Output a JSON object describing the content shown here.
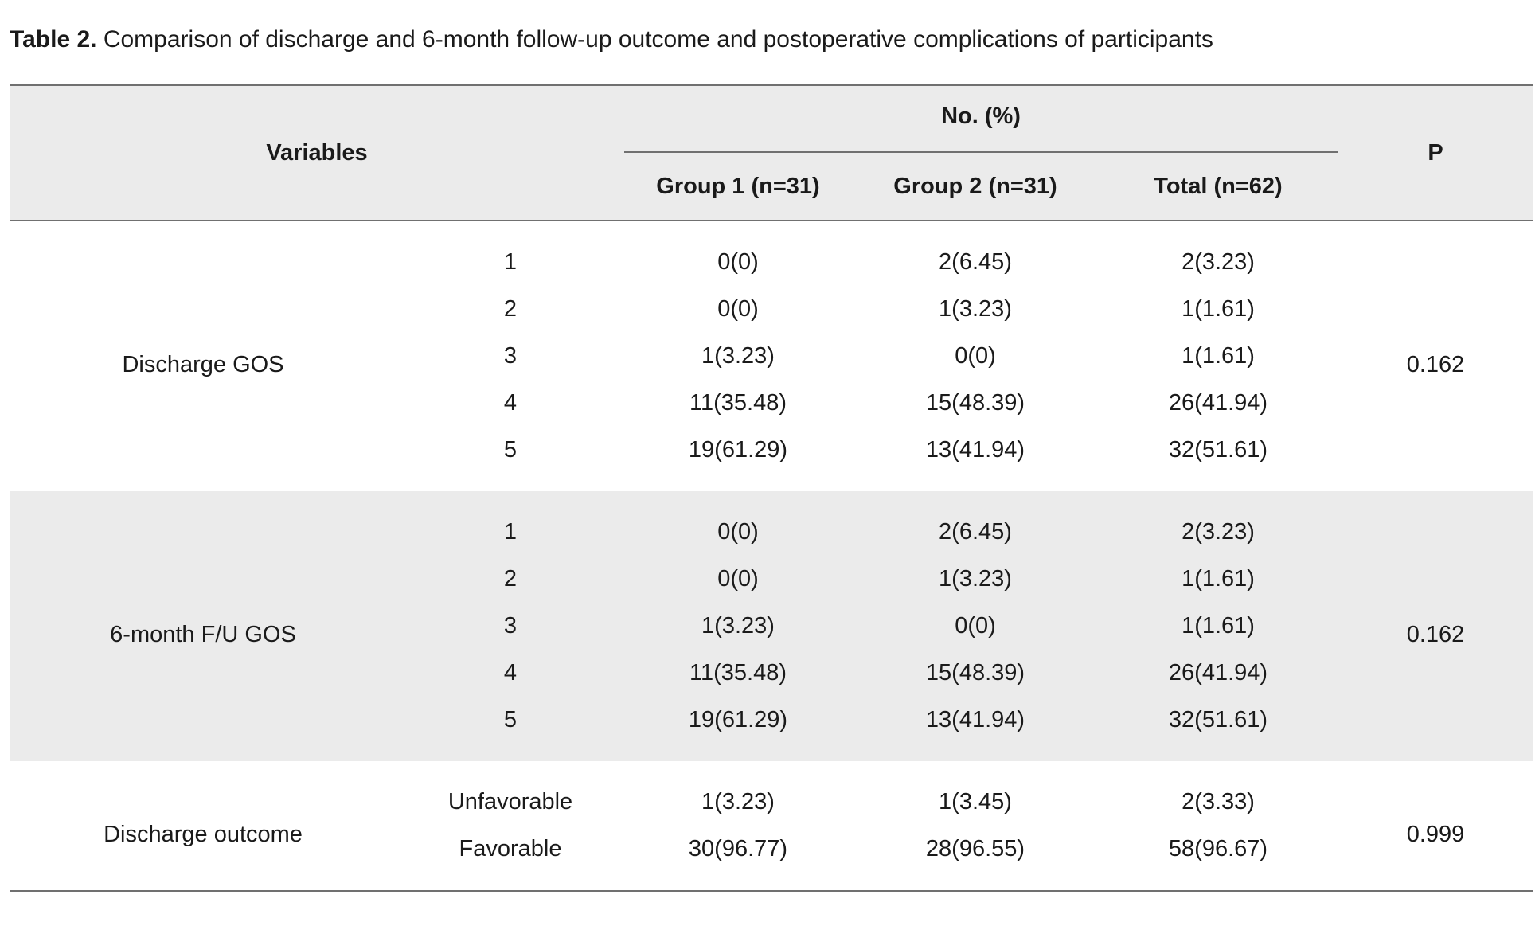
{
  "caption": {
    "label": "Table 2.",
    "text": "Comparison of discharge and 6-month follow-up outcome and postoperative complications of participants"
  },
  "header": {
    "variables": "Variables",
    "group_label": "No. (%)",
    "group1": "Group 1 (n=31)",
    "group2": "Group 2 (n=31)",
    "total": "Total (n=62)",
    "p": "P"
  },
  "blocks": [
    {
      "name": "Discharge GOS",
      "p": "0.162",
      "rows": [
        {
          "level": "1",
          "g1": "0(0)",
          "g2": "2(6.45)",
          "total": "2(3.23)"
        },
        {
          "level": "2",
          "g1": "0(0)",
          "g2": "1(3.23)",
          "total": "1(1.61)"
        },
        {
          "level": "3",
          "g1": "1(3.23)",
          "g2": "0(0)",
          "total": "1(1.61)"
        },
        {
          "level": "4",
          "g1": "11(35.48)",
          "g2": "15(48.39)",
          "total": "26(41.94)"
        },
        {
          "level": "5",
          "g1": "19(61.29)",
          "g2": "13(41.94)",
          "total": "32(51.61)"
        }
      ]
    },
    {
      "name": "6-month F/U GOS",
      "p": "0.162",
      "rows": [
        {
          "level": "1",
          "g1": "0(0)",
          "g2": "2(6.45)",
          "total": "2(3.23)"
        },
        {
          "level": "2",
          "g1": "0(0)",
          "g2": "1(3.23)",
          "total": "1(1.61)"
        },
        {
          "level": "3",
          "g1": "1(3.23)",
          "g2": "0(0)",
          "total": "1(1.61)"
        },
        {
          "level": "4",
          "g1": "11(35.48)",
          "g2": "15(48.39)",
          "total": "26(41.94)"
        },
        {
          "level": "5",
          "g1": "19(61.29)",
          "g2": "13(41.94)",
          "total": "32(51.61)"
        }
      ]
    },
    {
      "name": "Discharge outcome",
      "p": "0.999",
      "rows": [
        {
          "level": "Unfavorable",
          "g1": "1(3.23)",
          "g2": "1(3.45)",
          "total": "2(3.33)"
        },
        {
          "level": "Favorable",
          "g1": "30(96.77)",
          "g2": "28(96.55)",
          "total": "58(96.67)"
        }
      ]
    }
  ],
  "colors": {
    "shade": "#ebebeb",
    "rule": "#707070",
    "text": "#1a1a1a"
  }
}
